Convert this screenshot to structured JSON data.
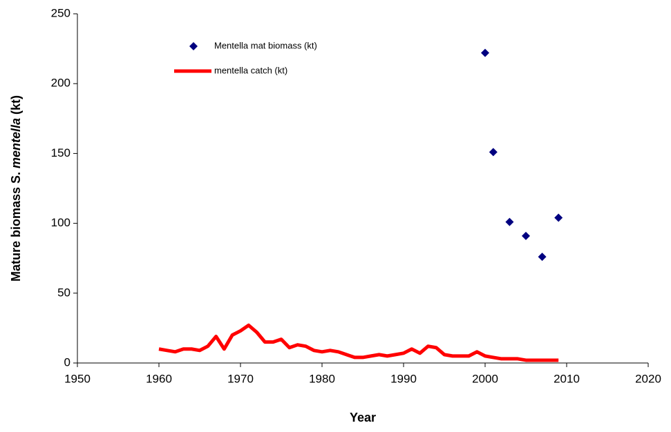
{
  "chart_data": {
    "type": "combo",
    "x_label": "Year",
    "y_label": [
      "Mature biomass",
      "S.",
      "mentella",
      "(kt)"
    ],
    "xlim": [
      1950,
      2020
    ],
    "xticks": [
      1950,
      1960,
      1970,
      1980,
      1990,
      2000,
      2010,
      2020
    ],
    "ylim": [
      0,
      250
    ],
    "yticks": [
      0,
      50,
      100,
      150,
      200,
      250
    ],
    "grid": false,
    "legend": "upper-left",
    "series": [
      {
        "name": "Mentella mat biomass (kt)",
        "type": "scatter",
        "color": "#000080",
        "x": [
          2000,
          2001,
          2003,
          2005,
          2007,
          2009
        ],
        "values": [
          222,
          151,
          101,
          91,
          76,
          104
        ]
      },
      {
        "name": "mentella catch (kt)",
        "type": "line",
        "color": "#ff0000",
        "x": [
          1960,
          1961,
          1962,
          1963,
          1964,
          1965,
          1966,
          1967,
          1968,
          1969,
          1970,
          1971,
          1972,
          1973,
          1974,
          1975,
          1976,
          1977,
          1978,
          1979,
          1980,
          1981,
          1982,
          1983,
          1984,
          1985,
          1986,
          1987,
          1988,
          1989,
          1990,
          1991,
          1992,
          1993,
          1994,
          1995,
          1996,
          1997,
          1998,
          1999,
          2000,
          2001,
          2002,
          2003,
          2004,
          2005,
          2006,
          2007,
          2008,
          2009
        ],
        "values": [
          10,
          9,
          8,
          10,
          10,
          9,
          12,
          19,
          10,
          20,
          23,
          27,
          22,
          15,
          15,
          17,
          11,
          13,
          12,
          9,
          8,
          9,
          8,
          6,
          4,
          4,
          5,
          6,
          5,
          6,
          7,
          10,
          7,
          12,
          11,
          6,
          5,
          5,
          5,
          8,
          5,
          4,
          3,
          3,
          3,
          2,
          2,
          2,
          2,
          2
        ]
      }
    ]
  }
}
